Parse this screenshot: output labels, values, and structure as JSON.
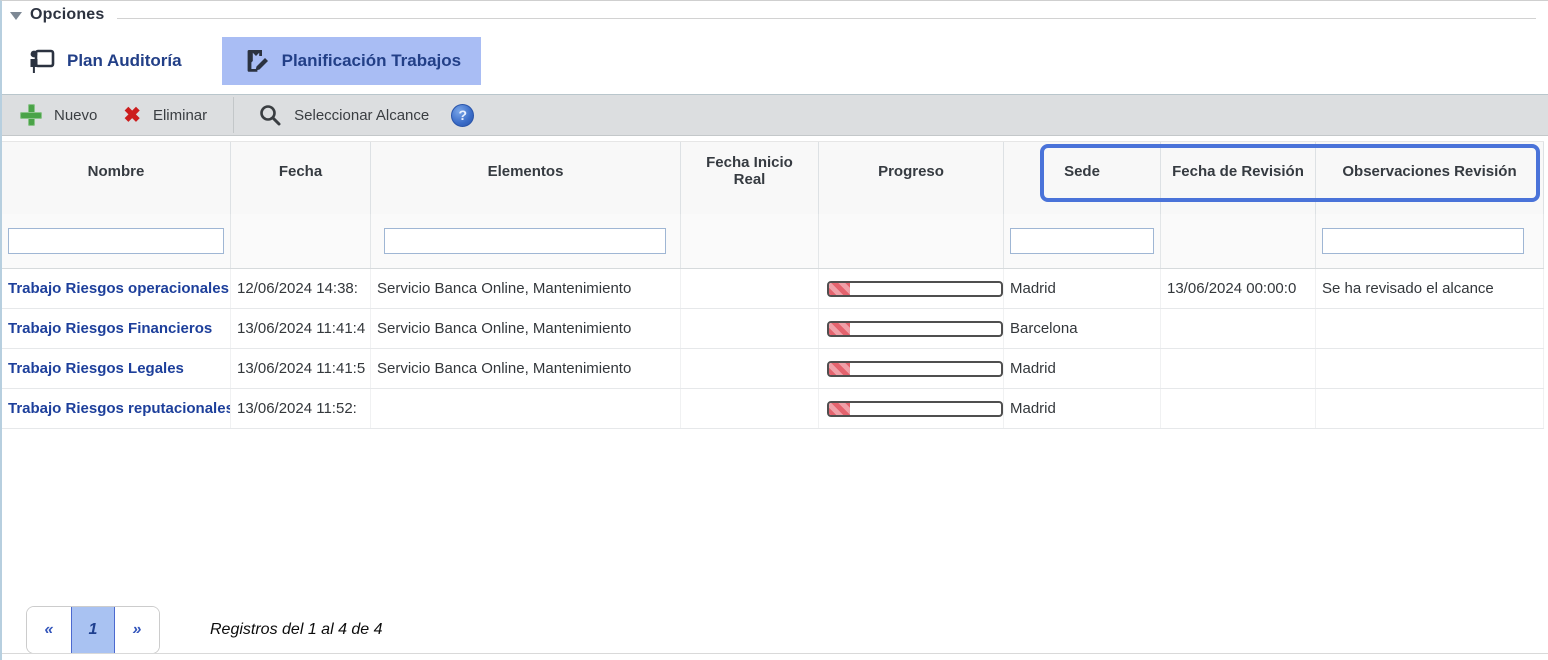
{
  "panel": {
    "legend": "Opciones"
  },
  "tabs": [
    {
      "label": "Plan Auditoría",
      "icon": "presenter-icon",
      "active": false
    },
    {
      "label": "Planificación Trabajos",
      "icon": "bookmark-edit-icon",
      "active": true
    }
  ],
  "toolbar": {
    "new_label": "Nuevo",
    "delete_label": "Eliminar",
    "scope_label": "Seleccionar Alcance",
    "help_symbol": "?"
  },
  "table": {
    "columns": [
      {
        "label": "Nombre",
        "has_filter": true
      },
      {
        "label": "Fecha",
        "has_filter": false
      },
      {
        "label": "Elementos",
        "has_filter": true
      },
      {
        "label": "Fecha Inicio Real",
        "has_filter": false
      },
      {
        "label": "Progreso",
        "has_filter": false
      },
      {
        "label": "Sede",
        "has_filter": true
      },
      {
        "label": "Fecha de Revisión",
        "has_filter": false
      },
      {
        "label": "Observaciones Revisión",
        "has_filter": true
      }
    ],
    "highlighted_columns": [
      "Sede",
      "Fecha de Revisión",
      "Observaciones Revisión"
    ],
    "rows": [
      {
        "nombre": "Trabajo Riesgos operacionales",
        "fecha": "12/06/2024 14:38:",
        "elementos": "Servicio Banca Online, Mantenimiento",
        "fecha_inicio_real": "",
        "progreso_pct": 12,
        "sede": "Madrid",
        "fecha_revision": "13/06/2024 00:00:0",
        "observaciones": "Se ha revisado el alcance"
      },
      {
        "nombre": "Trabajo Riesgos Financieros",
        "fecha": "13/06/2024 11:41:4",
        "elementos": "Servicio Banca Online, Mantenimiento",
        "fecha_inicio_real": "",
        "progreso_pct": 12,
        "sede": "Barcelona",
        "fecha_revision": "",
        "observaciones": ""
      },
      {
        "nombre": "Trabajo Riesgos Legales",
        "fecha": "13/06/2024 11:41:5",
        "elementos": "Servicio Banca Online, Mantenimiento",
        "fecha_inicio_real": "",
        "progreso_pct": 12,
        "sede": "Madrid",
        "fecha_revision": "",
        "observaciones": ""
      },
      {
        "nombre": "Trabajo Riesgos reputacionales",
        "fecha": "13/06/2024 11:52:",
        "elementos": "",
        "fecha_inicio_real": "",
        "progreso_pct": 12,
        "sede": "Madrid",
        "fecha_revision": "",
        "observaciones": ""
      }
    ]
  },
  "pagination": {
    "prev": "«",
    "current_page": "1",
    "next": "»",
    "info": "Registros del 1 al 4 de 4"
  },
  "colors": {
    "accent_navy": "#223f87",
    "active_tab_bg": "#a9bdf4",
    "highlight_border": "#4a73d9",
    "progress_red": "#e4636e",
    "new_green": "#4aa348",
    "delete_red": "#cc1d1d"
  }
}
